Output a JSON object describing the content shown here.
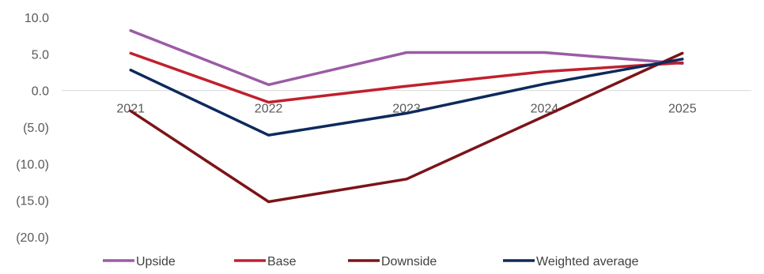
{
  "chart_data": {
    "type": "line",
    "categories": [
      "2021",
      "2022",
      "2023",
      "2024",
      "2025"
    ],
    "y_ticks": [
      "10.0",
      "5.0",
      "0.0",
      "(5.0)",
      "(10.0)",
      "(15.0)",
      "(20.0)"
    ],
    "ylim": [
      -20,
      10
    ],
    "grid": false,
    "legend_position": "bottom",
    "series": [
      {
        "name": "Upside",
        "color": "#9b5ba5",
        "values": [
          8.2,
          0.8,
          5.2,
          5.2,
          3.7
        ]
      },
      {
        "name": "Base",
        "color": "#c0202e",
        "values": [
          5.1,
          -1.6,
          0.6,
          2.6,
          3.8
        ]
      },
      {
        "name": "Downside",
        "color": "#7b1418",
        "values": [
          -2.8,
          -15.2,
          -12.1,
          -3.5,
          5.1
        ]
      },
      {
        "name": "Weighted average",
        "color": "#0d2a5c",
        "values": [
          2.8,
          -6.1,
          -3.1,
          0.9,
          4.3
        ]
      }
    ]
  }
}
